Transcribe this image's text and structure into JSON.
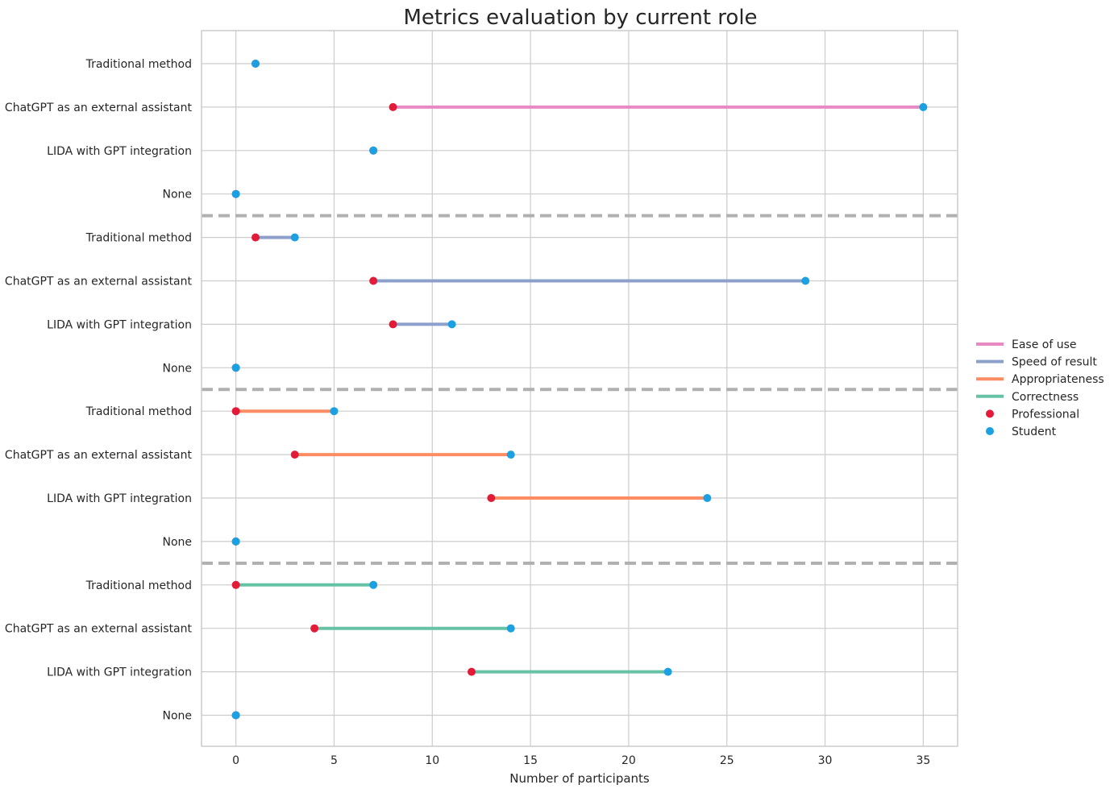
{
  "chart_data": {
    "type": "dumbbell",
    "title": "Metrics evaluation by current role",
    "xlabel": "Number of participants",
    "ylabel": "",
    "xlim": [
      -1.75,
      36.75
    ],
    "xticks": [
      0,
      5,
      10,
      15,
      20,
      25,
      30,
      35
    ],
    "grid": true,
    "legend_position": "center-right",
    "categories": [
      "Traditional method",
      "ChatGPT as an external assistant",
      "LIDA with GPT integration",
      "None"
    ],
    "groups": [
      {
        "name": "Ease of use",
        "color": "#e78ac3",
        "rows": [
          {
            "category": "Traditional method",
            "professional": 1,
            "student": 1
          },
          {
            "category": "ChatGPT as an external assistant",
            "professional": 8,
            "student": 35
          },
          {
            "category": "LIDA with GPT integration",
            "professional": 7,
            "student": 7
          },
          {
            "category": "None",
            "professional": 0,
            "student": 0
          }
        ]
      },
      {
        "name": "Speed of result",
        "color": "#8da0cb",
        "rows": [
          {
            "category": "Traditional method",
            "professional": 1,
            "student": 3
          },
          {
            "category": "ChatGPT as an external assistant",
            "professional": 7,
            "student": 29
          },
          {
            "category": "LIDA with GPT integration",
            "professional": 8,
            "student": 11
          },
          {
            "category": "None",
            "professional": 0,
            "student": 0
          }
        ]
      },
      {
        "name": "Appropriateness",
        "color": "#fc8d62",
        "rows": [
          {
            "category": "Traditional method",
            "professional": 0,
            "student": 5
          },
          {
            "category": "ChatGPT as an external assistant",
            "professional": 3,
            "student": 14
          },
          {
            "category": "LIDA with GPT integration",
            "professional": 13,
            "student": 24
          },
          {
            "category": "None",
            "professional": 0,
            "student": 0
          }
        ]
      },
      {
        "name": "Correctness",
        "color": "#66c2a5",
        "rows": [
          {
            "category": "Traditional method",
            "professional": 0,
            "student": 7
          },
          {
            "category": "ChatGPT as an external assistant",
            "professional": 4,
            "student": 14
          },
          {
            "category": "LIDA with GPT integration",
            "professional": 12,
            "student": 22
          },
          {
            "category": "None",
            "professional": 0,
            "student": 0
          }
        ]
      }
    ],
    "point_series": [
      {
        "name": "Professional",
        "color": "#e31a38"
      },
      {
        "name": "Student",
        "color": "#1ba1e2"
      }
    ],
    "separator_color": "#b0b0b0",
    "grid_color": "#cccccc"
  }
}
